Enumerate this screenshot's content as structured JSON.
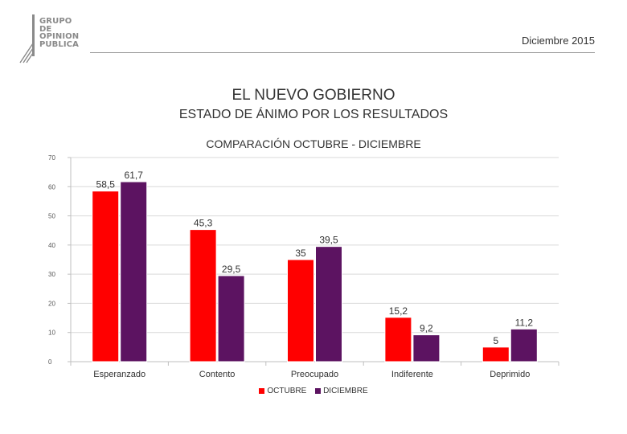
{
  "header": {
    "logo_lines": [
      "GRUPO",
      "DE",
      "OPINION",
      "PUBLICA"
    ],
    "date": "Diciembre 2015"
  },
  "title": "EL NUEVO GOBIERNO",
  "subtitle": "ESTADO DE ÁNIMO POR LOS RESULTADOS",
  "colors": {
    "octubre": "#ff0000",
    "diciembre": "#5c1361"
  },
  "chart_data": {
    "type": "bar",
    "title": "COMPARACIÓN OCTUBRE - DICIEMBRE",
    "categories": [
      "Esperanzado",
      "Contento",
      "Preocupado",
      "Indiferente",
      "Deprimido"
    ],
    "series": [
      {
        "name": "OCTUBRE",
        "values": [
          58.5,
          45.3,
          35,
          15.2,
          5
        ],
        "labels": [
          "58,5",
          "45,3",
          "35",
          "15,2",
          "5"
        ]
      },
      {
        "name": "DICIEMBRE",
        "values": [
          61.7,
          29.5,
          39.5,
          9.2,
          11.2
        ],
        "labels": [
          "61,7",
          "29,5",
          "39,5",
          "9,2",
          "11,2"
        ]
      }
    ],
    "ylim": [
      0,
      70
    ],
    "yticks": [
      "0",
      "10",
      "20",
      "30",
      "40",
      "50",
      "60",
      "70"
    ],
    "grid": true,
    "legend": "bottom",
    "xlabel": "",
    "ylabel": ""
  }
}
